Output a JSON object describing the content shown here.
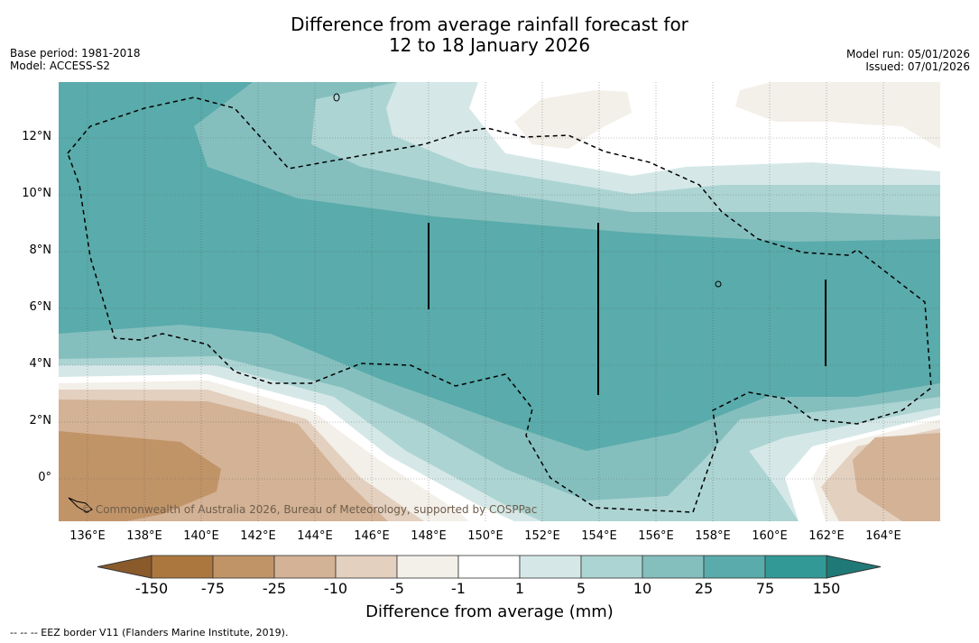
{
  "title": {
    "line1": "Difference from average rainfall forecast for",
    "line2": "12 to 18 January 2026"
  },
  "meta_left": {
    "base_period": "Base period: 1981-2018",
    "model": "Model: ACCESS-S2"
  },
  "meta_right": {
    "model_run": "Model run: 05/01/2026",
    "issued": "Issued: 07/01/2026"
  },
  "map": {
    "lon_labels": [
      "136°E",
      "138°E",
      "140°E",
      "142°E",
      "144°E",
      "146°E",
      "148°E",
      "150°E",
      "152°E",
      "154°E",
      "156°E",
      "158°E",
      "160°E",
      "162°E",
      "164°E"
    ],
    "lat_labels": [
      "12°N",
      "10°N",
      "8°N",
      "6°N",
      "4°N",
      "2°N",
      "0°"
    ],
    "copyright": "© Commonwealth of Australia 2026, Bureau of Meteorology, supported by COSPPac"
  },
  "colorbar": {
    "labels": [
      "-150",
      "-75",
      "-25",
      "-10",
      "-5",
      "-1",
      "1",
      "5",
      "10",
      "25",
      "75",
      "150"
    ],
    "colors": [
      "#ab773f",
      "#c19468",
      "#d3b295",
      "#e3d0bf",
      "#f3efe9",
      "#ffffff",
      "#d5e8e7",
      "#acd4d3",
      "#84bfbe",
      "#5aabab",
      "#339996"
    ],
    "extend_low": "#8a5a2b",
    "extend_high": "#1f7a77",
    "label": "Difference from average (mm)"
  },
  "footer": "--  --  -- EEZ border V11 (Flanders Marine Institute, 2019)."
}
